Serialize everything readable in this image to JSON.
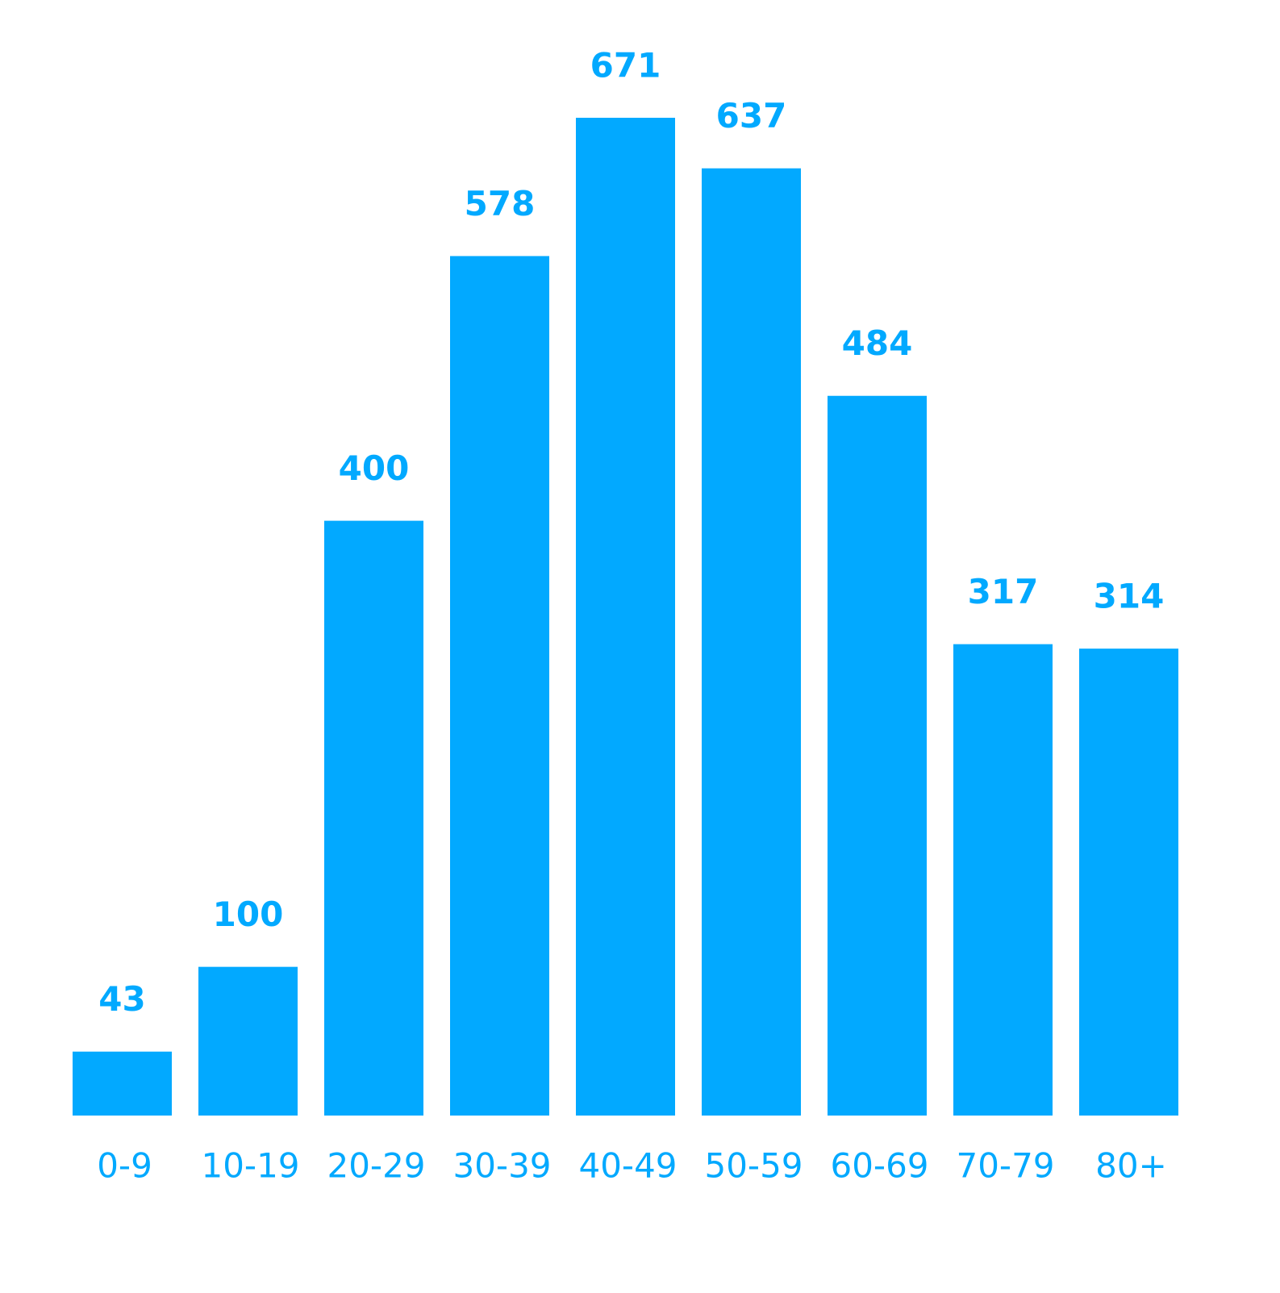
{
  "chart_data": {
    "type": "bar",
    "categories": [
      "0-9",
      "10-19",
      "20-29",
      "30-39",
      "40-49",
      "50-59",
      "60-69",
      "70-79",
      "80+"
    ],
    "values": [
      43,
      100,
      400,
      578,
      671,
      637,
      484,
      317,
      314
    ],
    "color": "#02a9ff"
  }
}
